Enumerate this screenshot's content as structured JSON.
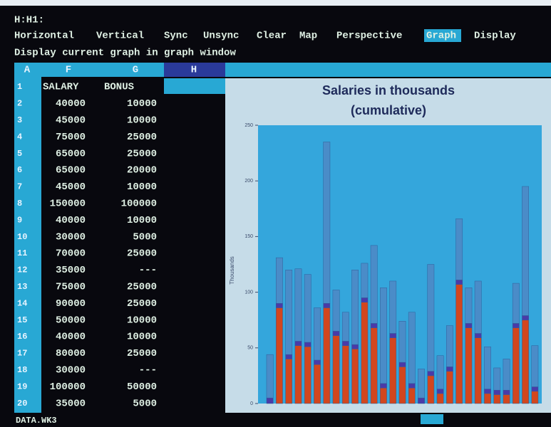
{
  "status": "H:H1:",
  "menu": [
    "Horizontal",
    "Vertical",
    "Sync",
    "Unsync",
    "Clear",
    "Map",
    "Perspective",
    "Graph",
    "Display"
  ],
  "menu_selected": 7,
  "hint": "Display current graph in graph window",
  "columns": [
    "A",
    "F",
    "G",
    "H"
  ],
  "rows": [
    [
      1,
      "SALARY",
      "BONUS"
    ],
    [
      2,
      40000,
      10000
    ],
    [
      3,
      45000,
      10000
    ],
    [
      4,
      75000,
      25000
    ],
    [
      5,
      65000,
      25000
    ],
    [
      6,
      65000,
      20000
    ],
    [
      7,
      45000,
      10000
    ],
    [
      8,
      150000,
      100000
    ],
    [
      9,
      40000,
      10000
    ],
    [
      10,
      30000,
      5000
    ],
    [
      11,
      70000,
      25000
    ],
    [
      12,
      35000,
      "---"
    ],
    [
      13,
      75000,
      25000
    ],
    [
      14,
      90000,
      25000
    ],
    [
      15,
      50000,
      10000
    ],
    [
      16,
      40000,
      10000
    ],
    [
      17,
      80000,
      25000
    ],
    [
      18,
      30000,
      "---"
    ],
    [
      19,
      100000,
      50000
    ],
    [
      20,
      35000,
      5000
    ]
  ],
  "file": "DATA.WK3",
  "chart_data": {
    "type": "bar",
    "stacked": true,
    "title": "Salaries in thousands",
    "subtitle": "(cumulative)",
    "y_label": "Thousands",
    "categories": [
      null,
      null,
      null,
      null,
      null,
      null,
      null,
      null,
      null,
      null,
      null,
      null,
      null,
      null,
      null,
      null,
      null,
      null,
      null,
      null,
      null,
      null,
      null,
      null,
      null,
      null,
      null,
      null,
      null
    ],
    "series": [
      {
        "color": "#d2461e",
        "values": [
          0,
          86,
          40,
          52,
          51,
          35,
          86,
          61,
          52,
          49,
          91,
          68,
          14,
          59,
          33,
          14,
          0,
          25,
          9,
          29,
          107,
          68,
          59,
          9,
          8,
          8,
          68,
          75,
          11
        ]
      },
      {
        "color": "#4a3aa8",
        "values": [
          5,
          4,
          4,
          4,
          4,
          4,
          4,
          4,
          4,
          4,
          4,
          4,
          4,
          4,
          4,
          4,
          5,
          4,
          4,
          4,
          4,
          4,
          4,
          4,
          4,
          4,
          4,
          4,
          4
        ]
      },
      {
        "color": "#4a8cc8",
        "values": [
          39,
          41,
          76,
          65,
          61,
          47,
          145,
          37,
          26,
          67,
          31,
          70,
          86,
          47,
          37,
          64,
          26,
          96,
          30,
          37,
          55,
          32,
          47,
          38,
          20,
          28,
          36,
          116,
          37
        ]
      }
    ],
    "ylim": [
      0,
      250
    ],
    "yticks": [
      0,
      50,
      100,
      150,
      200,
      250
    ]
  }
}
